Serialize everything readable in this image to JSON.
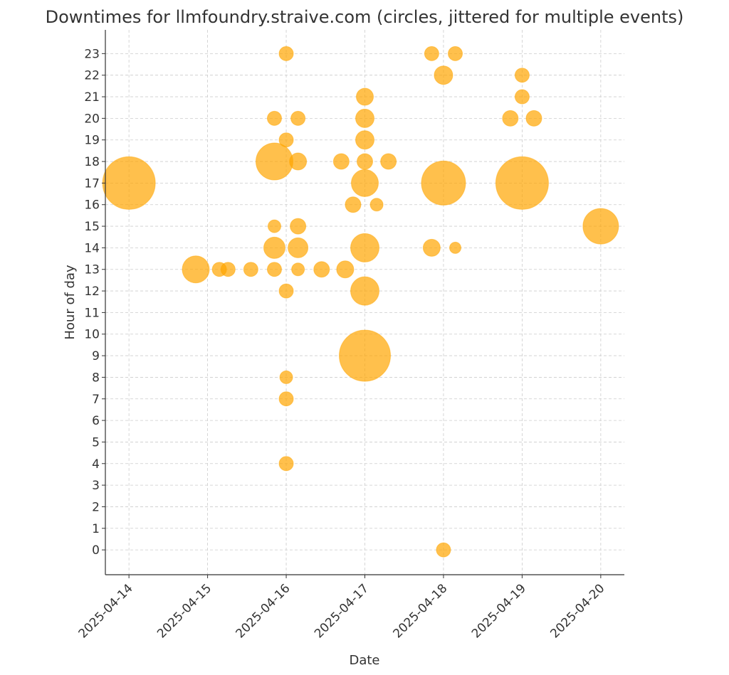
{
  "chart_data": {
    "type": "scatter",
    "title": "Downtimes for llmfoundry.straive.com (circles, jittered for multiple events)",
    "xlabel": "Date",
    "ylabel": "Hour of day",
    "x_ticks": [
      "2025-04-14",
      "2025-04-15",
      "2025-04-16",
      "2025-04-17",
      "2025-04-18",
      "2025-04-19",
      "2025-04-20"
    ],
    "x_unit": "days since 2025-04-14",
    "xlim": [
      -0.3,
      6.3
    ],
    "ylim": [
      -1.15,
      24.1
    ],
    "y_ticks": [
      0,
      1,
      2,
      3,
      4,
      5,
      6,
      7,
      8,
      9,
      10,
      11,
      12,
      13,
      14,
      15,
      16,
      17,
      18,
      19,
      20,
      21,
      22,
      23
    ],
    "grid": true,
    "color": "#FFA500",
    "alpha": 0.7,
    "points": [
      {
        "x": 0.0,
        "hour": 17,
        "size": 37
      },
      {
        "x": 0.85,
        "hour": 13,
        "size": 19
      },
      {
        "x": 1.15,
        "hour": 13,
        "size": 10
      },
      {
        "x": 1.26,
        "hour": 13,
        "size": 10
      },
      {
        "x": 1.55,
        "hour": 13,
        "size": 10
      },
      {
        "x": 1.85,
        "hour": 13,
        "size": 10
      },
      {
        "x": 2.15,
        "hour": 13,
        "size": 9
      },
      {
        "x": 2.45,
        "hour": 13,
        "size": 11
      },
      {
        "x": 2.75,
        "hour": 13,
        "size": 12
      },
      {
        "x": 2.0,
        "hour": 23,
        "size": 10
      },
      {
        "x": 1.85,
        "hour": 20,
        "size": 10
      },
      {
        "x": 2.15,
        "hour": 20,
        "size": 10
      },
      {
        "x": 2.0,
        "hour": 19,
        "size": 10
      },
      {
        "x": 1.85,
        "hour": 18,
        "size": 26
      },
      {
        "x": 2.15,
        "hour": 18,
        "size": 12
      },
      {
        "x": 1.85,
        "hour": 15,
        "size": 9
      },
      {
        "x": 2.15,
        "hour": 15,
        "size": 11
      },
      {
        "x": 1.85,
        "hour": 14,
        "size": 15
      },
      {
        "x": 2.15,
        "hour": 14,
        "size": 14
      },
      {
        "x": 2.0,
        "hour": 12,
        "size": 10
      },
      {
        "x": 2.0,
        "hour": 8,
        "size": 9
      },
      {
        "x": 2.0,
        "hour": 7,
        "size": 10
      },
      {
        "x": 2.0,
        "hour": 4,
        "size": 10
      },
      {
        "x": 3.0,
        "hour": 21,
        "size": 12
      },
      {
        "x": 3.0,
        "hour": 20,
        "size": 13
      },
      {
        "x": 3.0,
        "hour": 19,
        "size": 13
      },
      {
        "x": 2.7,
        "hour": 18,
        "size": 11
      },
      {
        "x": 3.0,
        "hour": 18,
        "size": 11
      },
      {
        "x": 3.3,
        "hour": 18,
        "size": 11
      },
      {
        "x": 3.0,
        "hour": 17,
        "size": 19
      },
      {
        "x": 2.85,
        "hour": 16,
        "size": 11
      },
      {
        "x": 3.15,
        "hour": 16,
        "size": 9
      },
      {
        "x": 3.0,
        "hour": 14,
        "size": 20
      },
      {
        "x": 3.0,
        "hour": 12,
        "size": 20
      },
      {
        "x": 3.0,
        "hour": 9,
        "size": 36
      },
      {
        "x": 3.85,
        "hour": 23,
        "size": 10
      },
      {
        "x": 4.15,
        "hour": 23,
        "size": 10
      },
      {
        "x": 4.0,
        "hour": 22,
        "size": 13
      },
      {
        "x": 4.0,
        "hour": 17,
        "size": 31
      },
      {
        "x": 3.85,
        "hour": 14,
        "size": 12
      },
      {
        "x": 4.15,
        "hour": 14,
        "size": 8
      },
      {
        "x": 4.0,
        "hour": 0,
        "size": 10
      },
      {
        "x": 5.0,
        "hour": 22,
        "size": 10
      },
      {
        "x": 5.0,
        "hour": 21,
        "size": 10
      },
      {
        "x": 4.85,
        "hour": 20,
        "size": 11
      },
      {
        "x": 5.15,
        "hour": 20,
        "size": 11
      },
      {
        "x": 5.0,
        "hour": 17,
        "size": 37
      },
      {
        "x": 6.0,
        "hour": 15,
        "size": 25
      }
    ]
  }
}
